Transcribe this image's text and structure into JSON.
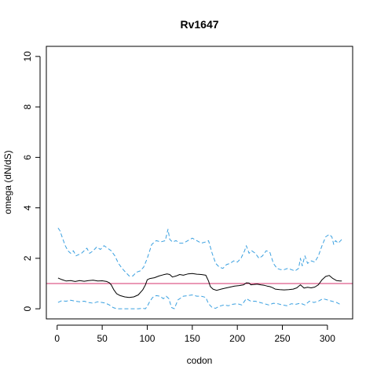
{
  "chart_data": {
    "type": "line",
    "title": "Rv1647",
    "xlabel": "codon",
    "ylabel": "omega (dN/dS)",
    "xlim": [
      -12,
      328
    ],
    "ylim": [
      -0.4,
      10.4
    ],
    "xticks": [
      0,
      50,
      100,
      150,
      200,
      250,
      300
    ],
    "yticks": [
      0,
      2,
      4,
      6,
      8,
      10
    ],
    "reference_line": {
      "y": 1.0,
      "color": "#d6336c"
    },
    "colors": {
      "estimate": "#000000",
      "bounds": "#3aa0e0"
    },
    "series": [
      {
        "role": "estimate",
        "style": "solid",
        "x": [
          1,
          5,
          10,
          15,
          20,
          25,
          30,
          35,
          40,
          45,
          50,
          55,
          58,
          60,
          63,
          66,
          70,
          75,
          80,
          85,
          90,
          95,
          98,
          100,
          103,
          108,
          113,
          118,
          122,
          125,
          128,
          132,
          136,
          140,
          145,
          150,
          155,
          160,
          165,
          168,
          170,
          173,
          177,
          182,
          187,
          192,
          197,
          202,
          207,
          210,
          213,
          215,
          218,
          222,
          226,
          230,
          233,
          236,
          239,
          242,
          247,
          252,
          257,
          262,
          266,
          270,
          274,
          278,
          282,
          286,
          290,
          294,
          298,
          302,
          306,
          310,
          314,
          316
        ],
        "y": [
          1.22,
          1.16,
          1.1,
          1.12,
          1.08,
          1.12,
          1.09,
          1.12,
          1.13,
          1.1,
          1.11,
          1.08,
          1.03,
          0.95,
          0.75,
          0.6,
          0.52,
          0.47,
          0.45,
          0.47,
          0.55,
          0.75,
          0.95,
          1.15,
          1.2,
          1.23,
          1.3,
          1.35,
          1.38,
          1.36,
          1.26,
          1.3,
          1.36,
          1.33,
          1.38,
          1.4,
          1.37,
          1.36,
          1.33,
          1.1,
          0.88,
          0.78,
          0.73,
          0.78,
          0.82,
          0.86,
          0.9,
          0.92,
          0.95,
          1.03,
          1.02,
          0.95,
          0.96,
          0.98,
          0.95,
          0.93,
          0.9,
          0.88,
          0.84,
          0.78,
          0.76,
          0.75,
          0.76,
          0.78,
          0.83,
          0.95,
          0.82,
          0.85,
          0.83,
          0.86,
          0.95,
          1.15,
          1.28,
          1.32,
          1.2,
          1.12,
          1.1,
          1.1
        ]
      },
      {
        "role": "upper bound",
        "style": "dashed",
        "x": [
          1,
          3,
          6,
          9,
          12,
          15,
          18,
          21,
          24,
          27,
          30,
          33,
          36,
          40,
          44,
          48,
          52,
          56,
          60,
          64,
          68,
          72,
          76,
          80,
          84,
          88,
          92,
          96,
          100,
          105,
          110,
          115,
          120,
          123,
          125,
          128,
          132,
          136,
          140,
          145,
          150,
          155,
          160,
          165,
          168,
          172,
          176,
          180,
          184,
          188,
          192,
          196,
          200,
          204,
          208,
          210,
          213,
          216,
          220,
          224,
          228,
          232,
          236,
          240,
          244,
          248,
          252,
          256,
          260,
          264,
          268,
          270,
          272,
          275,
          278,
          282,
          286,
          290,
          294,
          298,
          302,
          305,
          307,
          309,
          312,
          316
        ],
        "y": [
          3.2,
          3.1,
          2.8,
          2.5,
          2.3,
          2.2,
          2.3,
          2.1,
          2.15,
          2.2,
          2.3,
          2.4,
          2.2,
          2.3,
          2.45,
          2.35,
          2.5,
          2.4,
          2.3,
          2.1,
          1.8,
          1.6,
          1.45,
          1.3,
          1.3,
          1.45,
          1.5,
          1.65,
          2.0,
          2.55,
          2.7,
          2.65,
          2.7,
          3.15,
          2.75,
          2.65,
          2.7,
          2.6,
          2.6,
          2.7,
          2.8,
          2.7,
          2.6,
          2.65,
          2.7,
          2.2,
          1.8,
          1.65,
          1.6,
          1.75,
          1.8,
          1.9,
          1.85,
          2.0,
          2.3,
          2.5,
          2.2,
          2.3,
          2.2,
          2.0,
          2.1,
          2.3,
          2.25,
          1.8,
          1.6,
          1.55,
          1.55,
          1.6,
          1.55,
          1.5,
          1.6,
          2.0,
          1.7,
          2.1,
          1.8,
          1.9,
          1.85,
          2.1,
          2.5,
          2.85,
          2.95,
          2.85,
          2.55,
          2.7,
          2.6,
          2.75
        ]
      },
      {
        "role": "lower bound",
        "style": "dashed",
        "x": [
          1,
          5,
          10,
          15,
          20,
          25,
          30,
          35,
          40,
          45,
          50,
          54,
          58,
          62,
          66,
          70,
          75,
          80,
          85,
          90,
          95,
          98,
          100,
          103,
          106,
          110,
          114,
          118,
          121,
          124,
          127,
          130,
          134,
          140,
          145,
          150,
          155,
          160,
          165,
          168,
          172,
          176,
          180,
          185,
          190,
          195,
          200,
          205,
          210,
          215,
          220,
          225,
          230,
          235,
          240,
          245,
          250,
          255,
          260,
          265,
          270,
          275,
          280,
          285,
          290,
          295,
          300,
          305,
          310,
          314,
          316
        ],
        "y": [
          0.25,
          0.32,
          0.3,
          0.34,
          0.3,
          0.28,
          0.3,
          0.25,
          0.22,
          0.28,
          0.25,
          0.22,
          0.15,
          0.05,
          0.0,
          0.0,
          0.0,
          0.0,
          0.0,
          0.0,
          0.02,
          0.0,
          0.1,
          0.3,
          0.45,
          0.52,
          0.5,
          0.4,
          0.5,
          0.4,
          0.05,
          0.0,
          0.35,
          0.5,
          0.52,
          0.55,
          0.5,
          0.5,
          0.45,
          0.2,
          0.05,
          0.02,
          0.1,
          0.15,
          0.12,
          0.18,
          0.2,
          0.15,
          0.4,
          0.3,
          0.3,
          0.25,
          0.2,
          0.15,
          0.22,
          0.2,
          0.15,
          0.12,
          0.2,
          0.18,
          0.22,
          0.15,
          0.3,
          0.25,
          0.3,
          0.4,
          0.35,
          0.3,
          0.25,
          0.18,
          0.15
        ]
      }
    ]
  }
}
